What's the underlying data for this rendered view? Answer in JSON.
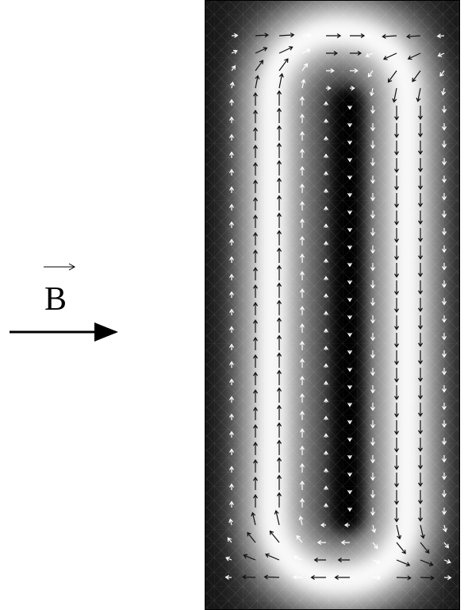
{
  "label": {
    "symbol": "B"
  }
}
